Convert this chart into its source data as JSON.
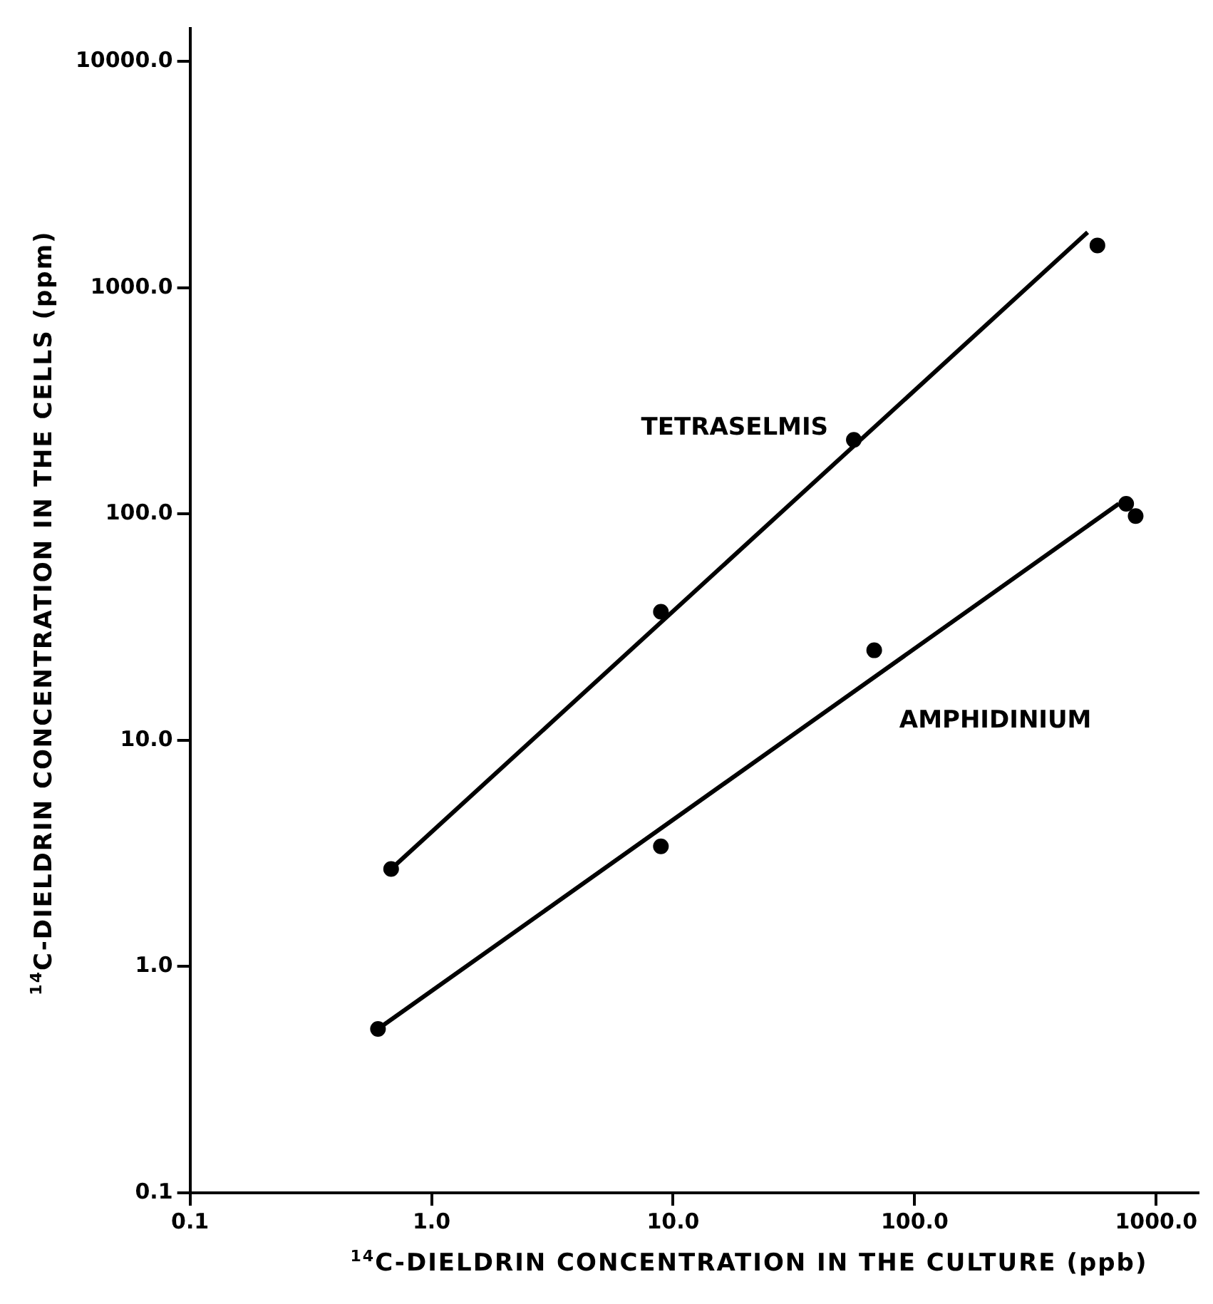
{
  "chart_data": {
    "type": "scatter",
    "xlabel": "$^{14}$C-DIELDRIN  CONCENTRATION IN THE CULTURE (ppb)",
    "ylabel": "$^{14}$C-DIELDRIN CONCENTRATION IN THE CELLS (ppm)",
    "log": "xy",
    "grid": false,
    "legend": false,
    "xlim": [
      0.1,
      1500
    ],
    "ylim": [
      0.1,
      14000
    ],
    "xticks": [
      0.1,
      {
        "value": 1,
        "label": "1.0"
      },
      {
        "value": 10,
        "label": "10.0"
      },
      {
        "value": 100,
        "label": "100.0"
      },
      {
        "value": 1000,
        "label": "1000.0"
      }
    ],
    "yticks": [
      0.1,
      {
        "value": 1,
        "label": "1.0"
      },
      {
        "value": 10,
        "label": "10.0"
      },
      {
        "value": 100,
        "label": "100.0"
      },
      {
        "value": 1000,
        "label": "1000.0"
      },
      {
        "value": 10000,
        "label": "10000.0"
      }
    ],
    "series": [
      {
        "name": "TETRASELMIS",
        "marker": "circle",
        "color": "#000000",
        "x": [
          0.68,
          8.9,
          56,
          571
        ],
        "values": [
          2.7,
          37,
          213,
          1540
        ]
      },
      {
        "name": "AMPHIDINIUM",
        "marker": "circle",
        "color": "#000000",
        "x": [
          0.6,
          8.9,
          68,
          751,
          822
        ],
        "values": [
          0.53,
          3.4,
          25,
          111,
          98
        ]
      },
      {
        "type": "line",
        "marker": "none",
        "color": "#000000",
        "x": [
          0.68,
          520
        ],
        "values": [
          2.7,
          1760
        ]
      },
      {
        "type": "line",
        "marker": "none",
        "color": "#000000",
        "x": [
          0.6,
          700
        ],
        "values": [
          0.53,
          111
        ]
      }
    ]
  }
}
